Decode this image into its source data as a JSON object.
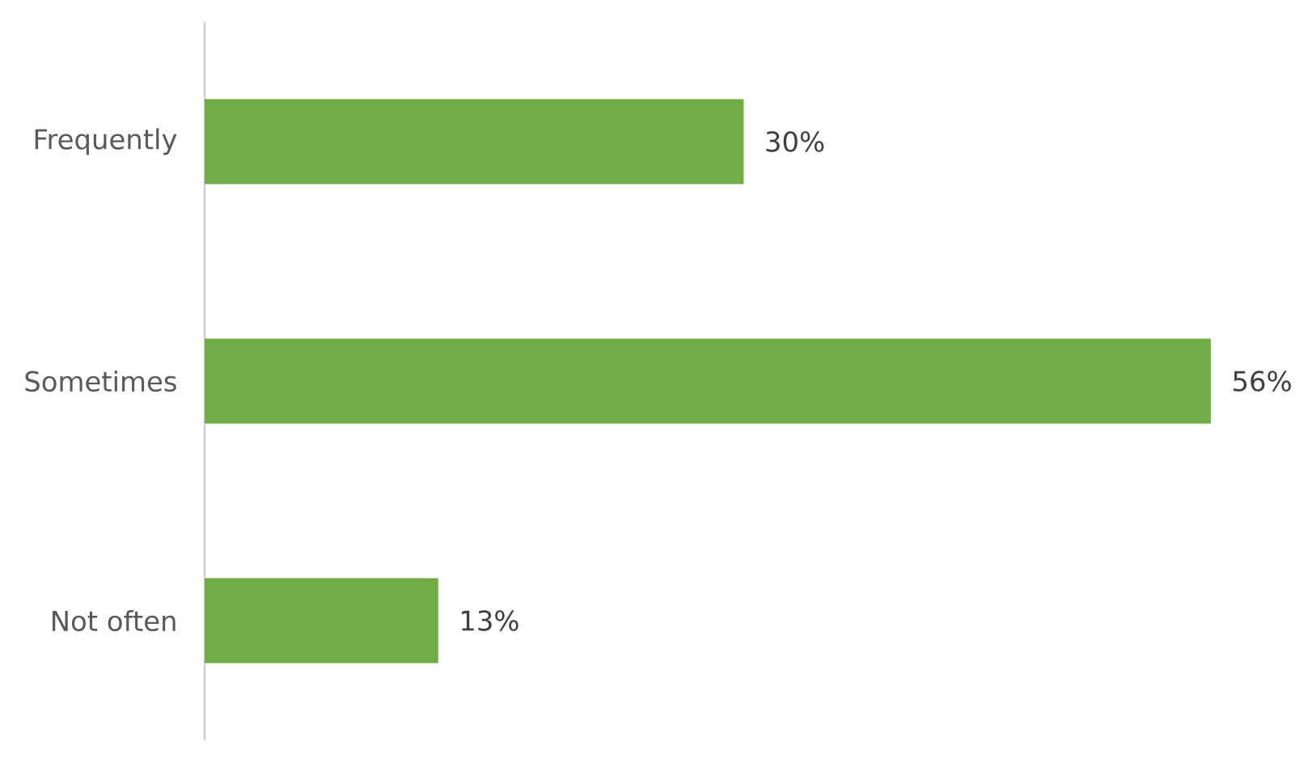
{
  "chart_data": {
    "type": "bar",
    "orientation": "horizontal",
    "categories": [
      "Frequently",
      "Sometimes",
      "Not often"
    ],
    "values": [
      30,
      56,
      13
    ],
    "color": "#70ad47",
    "value_labels": [
      "30%",
      "56%",
      "13%"
    ],
    "tick_labels": "y"
  }
}
